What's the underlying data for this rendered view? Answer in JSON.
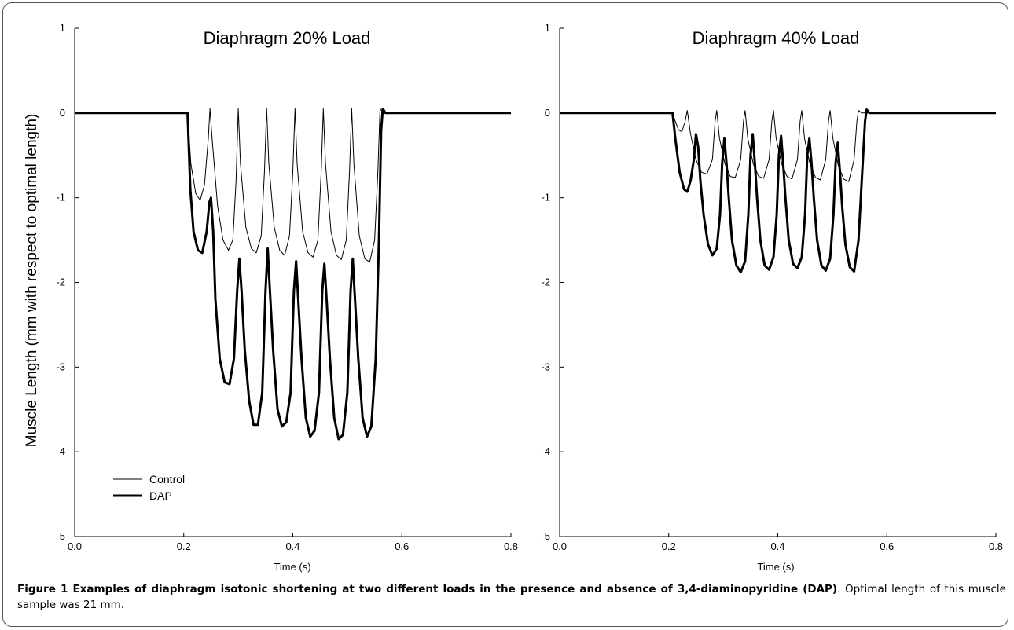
{
  "figure": {
    "caption_bold": "Figure 1 Examples of diaphragm isotonic shortening at two different loads in the presence and absence of 3,4-diaminopyridine (DAP)",
    "caption_rest": ". Optimal length of this muscle sample was 21 mm."
  },
  "chart_data": [
    {
      "type": "line",
      "title": "Diaphragm 20% Load",
      "xlabel": "Time (s)",
      "ylabel": "Muscle Length (mm with respect to optimal length)",
      "xlim": [
        0.0,
        0.8
      ],
      "ylim": [
        -5,
        1
      ],
      "x_ticks": [
        "0.0",
        "0.2",
        "0.4",
        "0.6",
        "0.8"
      ],
      "y_ticks": [
        "1",
        "0",
        "-1",
        "-2",
        "-3",
        "-4",
        "-5"
      ],
      "grid": false,
      "legend_position": "bottom-left",
      "series": [
        {
          "name": "Control",
          "line_weight": "thin",
          "points": [
            [
              0.0,
              0
            ],
            [
              0.207,
              0
            ],
            [
              0.213,
              -0.6
            ],
            [
              0.222,
              -0.95
            ],
            [
              0.23,
              -1.03
            ],
            [
              0.238,
              -0.85
            ],
            [
              0.245,
              -0.3
            ],
            [
              0.248,
              0.05
            ],
            [
              0.252,
              -0.3
            ],
            [
              0.262,
              -1.1
            ],
            [
              0.272,
              -1.5
            ],
            [
              0.282,
              -1.62
            ],
            [
              0.29,
              -1.5
            ],
            [
              0.296,
              -0.8
            ],
            [
              0.3,
              0.05
            ],
            [
              0.304,
              -0.6
            ],
            [
              0.314,
              -1.35
            ],
            [
              0.324,
              -1.6
            ],
            [
              0.333,
              -1.65
            ],
            [
              0.342,
              -1.45
            ],
            [
              0.348,
              -0.7
            ],
            [
              0.352,
              0.05
            ],
            [
              0.356,
              -0.6
            ],
            [
              0.366,
              -1.35
            ],
            [
              0.376,
              -1.62
            ],
            [
              0.385,
              -1.68
            ],
            [
              0.394,
              -1.45
            ],
            [
              0.4,
              -0.7
            ],
            [
              0.404,
              0.05
            ],
            [
              0.408,
              -0.6
            ],
            [
              0.418,
              -1.4
            ],
            [
              0.428,
              -1.65
            ],
            [
              0.437,
              -1.7
            ],
            [
              0.446,
              -1.5
            ],
            [
              0.452,
              -0.7
            ],
            [
              0.456,
              0.05
            ],
            [
              0.46,
              -0.6
            ],
            [
              0.47,
              -1.4
            ],
            [
              0.48,
              -1.68
            ],
            [
              0.489,
              -1.73
            ],
            [
              0.498,
              -1.5
            ],
            [
              0.504,
              -0.7
            ],
            [
              0.508,
              0.05
            ],
            [
              0.512,
              -0.6
            ],
            [
              0.522,
              -1.45
            ],
            [
              0.532,
              -1.72
            ],
            [
              0.541,
              -1.76
            ],
            [
              0.55,
              -1.5
            ],
            [
              0.556,
              -0.7
            ],
            [
              0.56,
              0.05
            ],
            [
              0.566,
              0
            ],
            [
              0.8,
              0
            ]
          ]
        },
        {
          "name": "DAP",
          "line_weight": "thick",
          "points": [
            [
              0.0,
              0
            ],
            [
              0.207,
              0
            ],
            [
              0.212,
              -0.9
            ],
            [
              0.218,
              -1.4
            ],
            [
              0.226,
              -1.62
            ],
            [
              0.234,
              -1.65
            ],
            [
              0.242,
              -1.4
            ],
            [
              0.247,
              -1.05
            ],
            [
              0.25,
              -1.0
            ],
            [
              0.254,
              -1.4
            ],
            [
              0.258,
              -2.2
            ],
            [
              0.266,
              -2.9
            ],
            [
              0.275,
              -3.18
            ],
            [
              0.284,
              -3.2
            ],
            [
              0.292,
              -2.9
            ],
            [
              0.298,
              -2.1
            ],
            [
              0.302,
              -1.72
            ],
            [
              0.306,
              -2.1
            ],
            [
              0.312,
              -2.8
            ],
            [
              0.32,
              -3.4
            ],
            [
              0.328,
              -3.68
            ],
            [
              0.336,
              -3.68
            ],
            [
              0.344,
              -3.3
            ],
            [
              0.35,
              -2.1
            ],
            [
              0.354,
              -1.6
            ],
            [
              0.358,
              -2.1
            ],
            [
              0.364,
              -2.8
            ],
            [
              0.372,
              -3.5
            ],
            [
              0.38,
              -3.7
            ],
            [
              0.388,
              -3.65
            ],
            [
              0.396,
              -3.3
            ],
            [
              0.402,
              -2.1
            ],
            [
              0.406,
              -1.75
            ],
            [
              0.41,
              -2.2
            ],
            [
              0.416,
              -2.9
            ],
            [
              0.424,
              -3.6
            ],
            [
              0.432,
              -3.82
            ],
            [
              0.44,
              -3.75
            ],
            [
              0.448,
              -3.3
            ],
            [
              0.454,
              -2.1
            ],
            [
              0.458,
              -1.78
            ],
            [
              0.462,
              -2.2
            ],
            [
              0.468,
              -2.9
            ],
            [
              0.476,
              -3.6
            ],
            [
              0.484,
              -3.85
            ],
            [
              0.492,
              -3.8
            ],
            [
              0.5,
              -3.3
            ],
            [
              0.506,
              -2.1
            ],
            [
              0.51,
              -1.72
            ],
            [
              0.514,
              -2.2
            ],
            [
              0.52,
              -2.9
            ],
            [
              0.528,
              -3.6
            ],
            [
              0.536,
              -3.82
            ],
            [
              0.544,
              -3.7
            ],
            [
              0.552,
              -2.9
            ],
            [
              0.558,
              -1.5
            ],
            [
              0.562,
              -0.2
            ],
            [
              0.565,
              0.05
            ],
            [
              0.57,
              0
            ],
            [
              0.8,
              0
            ]
          ]
        }
      ]
    },
    {
      "type": "line",
      "title": "Diaphragm 40% Load",
      "xlabel": "Time (s)",
      "ylabel": "",
      "xlim": [
        0.0,
        0.8
      ],
      "ylim": [
        -5,
        1
      ],
      "x_ticks": [
        "0.0",
        "0.2",
        "0.4",
        "0.6",
        "0.8"
      ],
      "y_ticks": [
        "1",
        "0",
        "-1",
        "-2",
        "-3",
        "-4",
        "-5"
      ],
      "grid": false,
      "series": [
        {
          "name": "Control",
          "line_weight": "thin",
          "points": [
            [
              0.0,
              0
            ],
            [
              0.207,
              0
            ],
            [
              0.212,
              -0.1
            ],
            [
              0.218,
              -0.2
            ],
            [
              0.224,
              -0.22
            ],
            [
              0.23,
              -0.1
            ],
            [
              0.234,
              0.03
            ],
            [
              0.24,
              -0.25
            ],
            [
              0.25,
              -0.55
            ],
            [
              0.26,
              -0.7
            ],
            [
              0.27,
              -0.72
            ],
            [
              0.28,
              -0.55
            ],
            [
              0.285,
              -0.1
            ],
            [
              0.288,
              0.03
            ],
            [
              0.293,
              -0.3
            ],
            [
              0.303,
              -0.6
            ],
            [
              0.313,
              -0.75
            ],
            [
              0.322,
              -0.76
            ],
            [
              0.332,
              -0.55
            ],
            [
              0.337,
              -0.1
            ],
            [
              0.34,
              0.03
            ],
            [
              0.345,
              -0.3
            ],
            [
              0.355,
              -0.6
            ],
            [
              0.365,
              -0.75
            ],
            [
              0.374,
              -0.77
            ],
            [
              0.384,
              -0.55
            ],
            [
              0.389,
              -0.1
            ],
            [
              0.392,
              0.03
            ],
            [
              0.397,
              -0.3
            ],
            [
              0.407,
              -0.6
            ],
            [
              0.417,
              -0.75
            ],
            [
              0.426,
              -0.78
            ],
            [
              0.436,
              -0.55
            ],
            [
              0.441,
              -0.1
            ],
            [
              0.444,
              0.03
            ],
            [
              0.449,
              -0.3
            ],
            [
              0.459,
              -0.6
            ],
            [
              0.469,
              -0.76
            ],
            [
              0.478,
              -0.79
            ],
            [
              0.488,
              -0.55
            ],
            [
              0.493,
              -0.1
            ],
            [
              0.496,
              0.03
            ],
            [
              0.501,
              -0.3
            ],
            [
              0.511,
              -0.62
            ],
            [
              0.521,
              -0.78
            ],
            [
              0.53,
              -0.81
            ],
            [
              0.54,
              -0.55
            ],
            [
              0.545,
              -0.1
            ],
            [
              0.548,
              0.03
            ],
            [
              0.554,
              0
            ],
            [
              0.8,
              0
            ]
          ]
        },
        {
          "name": "DAP",
          "line_weight": "thick",
          "points": [
            [
              0.0,
              0
            ],
            [
              0.207,
              0
            ],
            [
              0.212,
              -0.3
            ],
            [
              0.22,
              -0.7
            ],
            [
              0.228,
              -0.9
            ],
            [
              0.234,
              -0.93
            ],
            [
              0.24,
              -0.8
            ],
            [
              0.246,
              -0.55
            ],
            [
              0.25,
              -0.25
            ],
            [
              0.254,
              -0.4
            ],
            [
              0.258,
              -0.8
            ],
            [
              0.264,
              -1.2
            ],
            [
              0.272,
              -1.55
            ],
            [
              0.28,
              -1.68
            ],
            [
              0.288,
              -1.6
            ],
            [
              0.294,
              -1.2
            ],
            [
              0.298,
              -0.6
            ],
            [
              0.302,
              -0.3
            ],
            [
              0.306,
              -0.6
            ],
            [
              0.31,
              -1.0
            ],
            [
              0.316,
              -1.5
            ],
            [
              0.324,
              -1.8
            ],
            [
              0.332,
              -1.88
            ],
            [
              0.34,
              -1.75
            ],
            [
              0.346,
              -1.2
            ],
            [
              0.35,
              -0.5
            ],
            [
              0.354,
              -0.25
            ],
            [
              0.358,
              -0.6
            ],
            [
              0.362,
              -1.0
            ],
            [
              0.368,
              -1.5
            ],
            [
              0.376,
              -1.8
            ],
            [
              0.384,
              -1.85
            ],
            [
              0.392,
              -1.7
            ],
            [
              0.398,
              -1.2
            ],
            [
              0.402,
              -0.5
            ],
            [
              0.406,
              -0.27
            ],
            [
              0.41,
              -0.6
            ],
            [
              0.414,
              -1.0
            ],
            [
              0.42,
              -1.5
            ],
            [
              0.428,
              -1.78
            ],
            [
              0.436,
              -1.83
            ],
            [
              0.444,
              -1.7
            ],
            [
              0.45,
              -1.2
            ],
            [
              0.454,
              -0.5
            ],
            [
              0.458,
              -0.3
            ],
            [
              0.462,
              -0.6
            ],
            [
              0.466,
              -1.0
            ],
            [
              0.472,
              -1.5
            ],
            [
              0.48,
              -1.8
            ],
            [
              0.488,
              -1.86
            ],
            [
              0.496,
              -1.72
            ],
            [
              0.502,
              -1.2
            ],
            [
              0.506,
              -0.6
            ],
            [
              0.51,
              -0.35
            ],
            [
              0.514,
              -0.7
            ],
            [
              0.518,
              -1.1
            ],
            [
              0.524,
              -1.55
            ],
            [
              0.532,
              -1.82
            ],
            [
              0.54,
              -1.87
            ],
            [
              0.548,
              -1.5
            ],
            [
              0.554,
              -0.8
            ],
            [
              0.56,
              -0.1
            ],
            [
              0.563,
              0.04
            ],
            [
              0.568,
              0
            ],
            [
              0.8,
              0
            ]
          ]
        }
      ]
    }
  ]
}
